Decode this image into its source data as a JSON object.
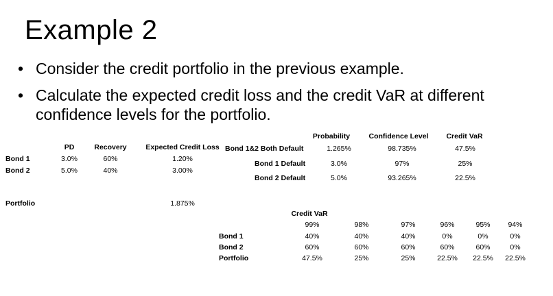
{
  "title": "Example 2",
  "bullets": [
    "Consider the credit portfolio in the previous example.",
    "Calculate the expected credit loss and the credit VaR at different confidence levels for the portfolio."
  ],
  "bullet_glyph": "•",
  "table1": {
    "headers": [
      "PD",
      "Recovery",
      "Expected Credit Loss"
    ],
    "rows": [
      {
        "label": "Bond 1",
        "pd": "3.0%",
        "recovery": "60%",
        "ecl": "1.20%"
      },
      {
        "label": "Bond 2",
        "pd": "5.0%",
        "recovery": "40%",
        "ecl": "3.00%"
      }
    ],
    "portfolio_label": "Portfolio",
    "portfolio_ecl": "1.875%"
  },
  "table2": {
    "headers": [
      "Probability",
      "Confidence Level",
      "Credit VaR"
    ],
    "rows": [
      {
        "label": "Bond 1&2 Both Default",
        "prob": "1.265%",
        "conf": "98.735%",
        "var": "47.5%"
      },
      {
        "label": "Bond 1 Default",
        "prob": "3.0%",
        "conf": "97%",
        "var": "25%"
      },
      {
        "label": "Bond 2 Default",
        "prob": "5.0%",
        "conf": "93.265%",
        "var": "22.5%"
      }
    ]
  },
  "table3": {
    "header": "Credit VaR",
    "levels": [
      "99%",
      "98%",
      "97%",
      "96%",
      "95%",
      "94%"
    ],
    "rows": [
      {
        "label": "Bond 1",
        "values": [
          "40%",
          "40%",
          "40%",
          "0%",
          "0%",
          "0%"
        ]
      },
      {
        "label": "Bond 2",
        "values": [
          "60%",
          "60%",
          "60%",
          "60%",
          "60%",
          "0%"
        ]
      },
      {
        "label": "Portfolio",
        "values": [
          "47.5%",
          "25%",
          "25%",
          "22.5%",
          "22.5%",
          "22.5%"
        ]
      }
    ]
  }
}
